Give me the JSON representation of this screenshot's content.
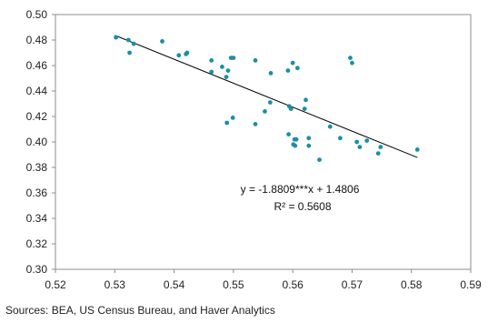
{
  "chart_data": {
    "type": "scatter",
    "title": "",
    "xlabel": "",
    "ylabel": "",
    "xlim": [
      0.52,
      0.59
    ],
    "ylim": [
      0.3,
      0.5
    ],
    "x_ticks": [
      "0.52",
      "0.53",
      "0.54",
      "0.55",
      "0.56",
      "0.57",
      "0.58",
      "0.59"
    ],
    "y_ticks": [
      "0.50",
      "0.48",
      "0.46",
      "0.44",
      "0.42",
      "0.40",
      "0.38",
      "0.36",
      "0.34",
      "0.32",
      "0.30"
    ],
    "grid": false,
    "legend": "none",
    "point_color": "#1b8fa3",
    "line_color": "#000000",
    "points": [
      [
        0.5302,
        0.482
      ],
      [
        0.5323,
        0.48
      ],
      [
        0.5332,
        0.477
      ],
      [
        0.5325,
        0.47
      ],
      [
        0.538,
        0.479
      ],
      [
        0.5408,
        0.468
      ],
      [
        0.542,
        0.469
      ],
      [
        0.5422,
        0.47
      ],
      [
        0.5463,
        0.464
      ],
      [
        0.5463,
        0.455
      ],
      [
        0.5481,
        0.459
      ],
      [
        0.5491,
        0.456
      ],
      [
        0.5496,
        0.466
      ],
      [
        0.55,
        0.466
      ],
      [
        0.5488,
        0.451
      ],
      [
        0.5489,
        0.415
      ],
      [
        0.5499,
        0.419
      ],
      [
        0.5537,
        0.464
      ],
      [
        0.5553,
        0.424
      ],
      [
        0.5537,
        0.414
      ],
      [
        0.5563,
        0.454
      ],
      [
        0.5562,
        0.431
      ],
      [
        0.5592,
        0.456
      ],
      [
        0.56,
        0.462
      ],
      [
        0.5608,
        0.458
      ],
      [
        0.5622,
        0.433
      ],
      [
        0.562,
        0.426
      ],
      [
        0.5594,
        0.428
      ],
      [
        0.5597,
        0.426
      ],
      [
        0.5593,
        0.406
      ],
      [
        0.5603,
        0.402
      ],
      [
        0.5601,
        0.398
      ],
      [
        0.5604,
        0.397
      ],
      [
        0.5606,
        0.402
      ],
      [
        0.5627,
        0.403
      ],
      [
        0.5627,
        0.397
      ],
      [
        0.5645,
        0.386
      ],
      [
        0.5663,
        0.412
      ],
      [
        0.568,
        0.403
      ],
      [
        0.5697,
        0.466
      ],
      [
        0.57,
        0.462
      ],
      [
        0.5708,
        0.4
      ],
      [
        0.5713,
        0.396
      ],
      [
        0.5725,
        0.401
      ],
      [
        0.5744,
        0.391
      ],
      [
        0.5748,
        0.396
      ],
      [
        0.581,
        0.394
      ]
    ],
    "trendline": {
      "slope": -1.8809,
      "intercept": 1.4806,
      "x_range": [
        0.53,
        0.581
      ]
    },
    "annotations": [
      "y = -1.8809***x + 1.4806",
      "R² = 0.5608"
    ]
  },
  "source": "Sources: BEA, US Census Bureau, and Haver Analytics"
}
